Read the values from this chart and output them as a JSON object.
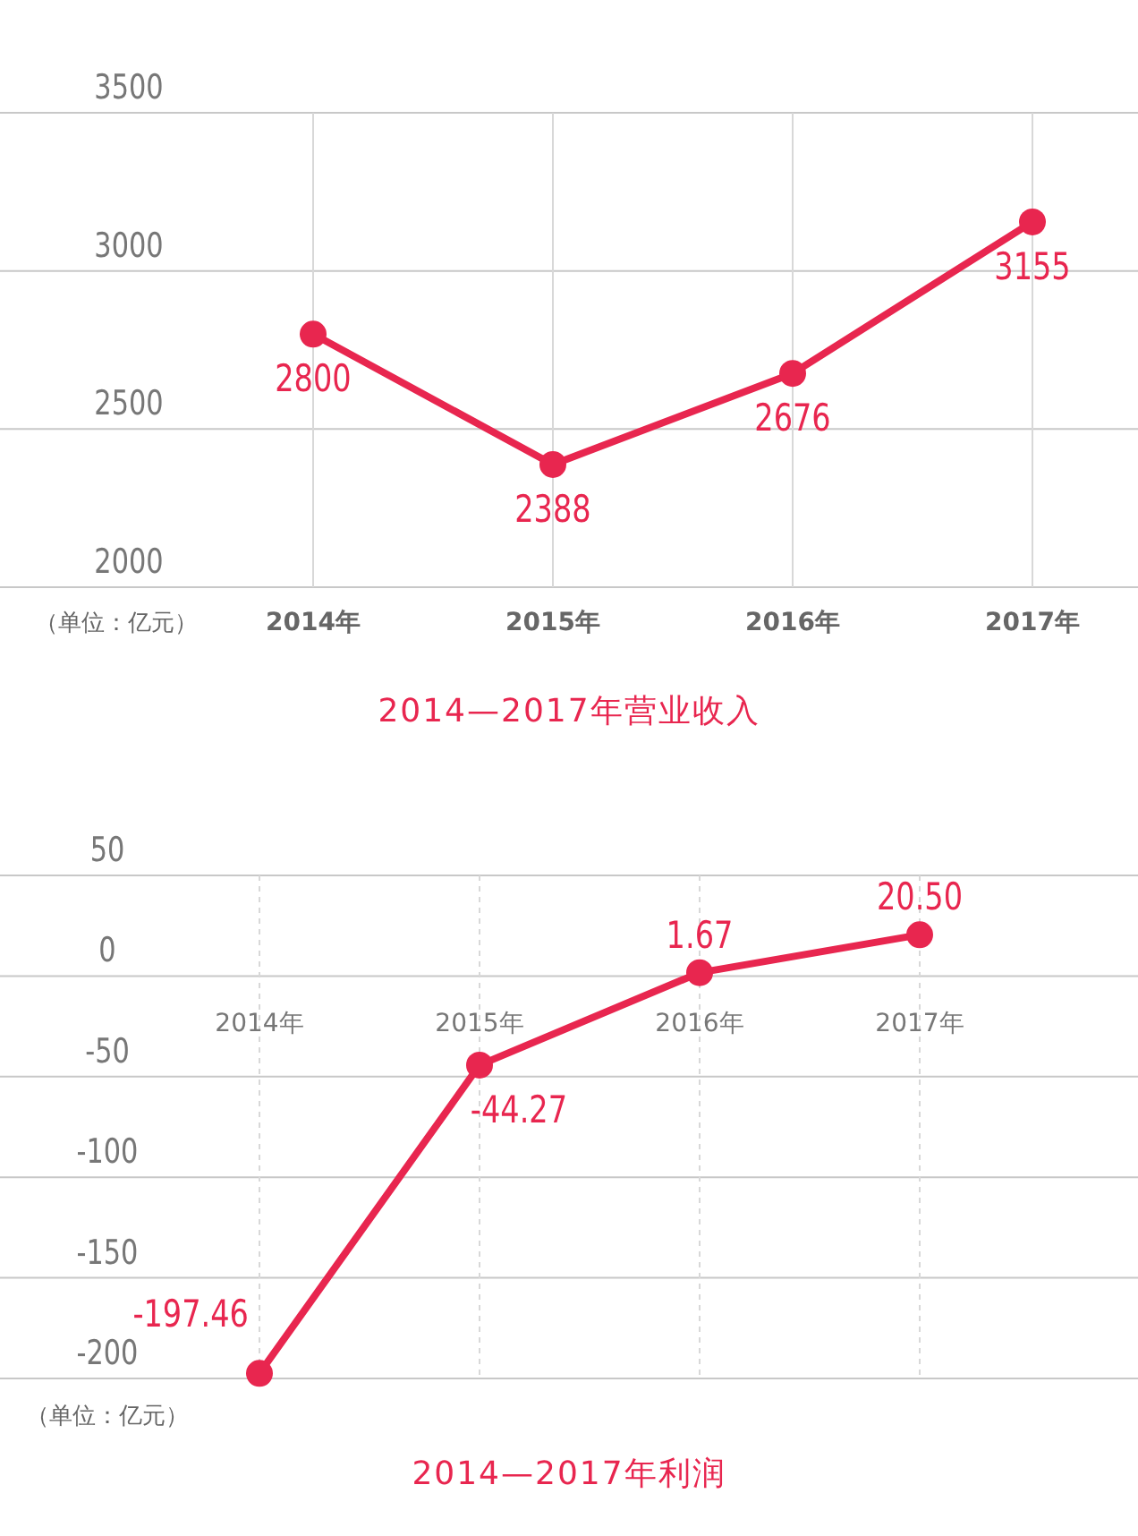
{
  "chart_data": [
    {
      "type": "line",
      "title": "2014—2017年营业收入",
      "categories": [
        "2014年",
        "2015年",
        "2016年",
        "2017年"
      ],
      "series": [
        {
          "color": "#e8264f",
          "values": [
            2800,
            2388,
            2676,
            3155
          ]
        }
      ],
      "ylim": [
        2000,
        3500
      ],
      "yticks": [
        2000,
        2500,
        3000,
        3500
      ],
      "grid": true,
      "marker": "circle",
      "line_style": "solid",
      "data_labels": true,
      "annotations": [
        "（单位：亿元）"
      ]
    },
    {
      "type": "line",
      "title": "2014—2017年利润",
      "categories": [
        "2014年",
        "2015年",
        "2016年",
        "2017年"
      ],
      "series": [
        {
          "color": "#e8264f",
          "values": [
            -197.46,
            -44.27,
            1.67,
            20.5
          ]
        }
      ],
      "value_labels": [
        "-197.46",
        "-44.27",
        "1.67",
        "20.50"
      ],
      "ylim": [
        -200,
        50
      ],
      "yticks": [
        -200,
        -150,
        -100,
        -50,
        0,
        50
      ],
      "grid": true,
      "marker": "circle",
      "line_style": "solid",
      "annotations": [
        "（单位：亿元）"
      ]
    }
  ]
}
